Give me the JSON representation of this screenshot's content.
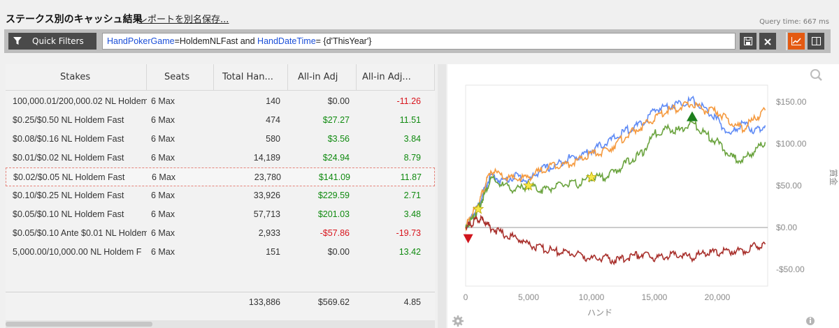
{
  "header": {
    "title": "ステークス別のキャッシュ結果",
    "save_link": "レポートを別名保存...",
    "query_time": "Query time: 667 ms"
  },
  "filters": {
    "button_label": "Quick Filters",
    "query_parts": [
      {
        "text": "HandPokerGame",
        "kind": "key"
      },
      {
        "text": "=HoldemNLFast and ",
        "kind": "plain"
      },
      {
        "text": "HandDateTime",
        "kind": "key"
      },
      {
        "text": "= {d'ThisYear'}",
        "kind": "plain"
      }
    ]
  },
  "toolbar": {
    "icons": [
      "save-icon",
      "close-icon",
      "line-chart-icon",
      "panel-icon"
    ]
  },
  "table": {
    "columns": [
      "Stakes",
      "Seats",
      "Total Han...",
      "All-in Adj",
      "All-in Adj..."
    ],
    "rows": [
      {
        "stakes": "100,000.01/200,000.02 NL Holdem",
        "seats": "6 Max",
        "hands": "140",
        "adj": "$0.00",
        "adj2": "-11.26",
        "adj_color": "neutral",
        "adj2_color": "neg"
      },
      {
        "stakes": "$0.25/$0.50 NL Holdem Fast",
        "seats": "6 Max",
        "hands": "474",
        "adj": "$27.27",
        "adj2": "11.51",
        "adj_color": "pos",
        "adj2_color": "pos"
      },
      {
        "stakes": "$0.08/$0.16 NL Holdem Fast",
        "seats": "6 Max",
        "hands": "580",
        "adj": "$3.56",
        "adj2": "3.84",
        "adj_color": "pos",
        "adj2_color": "pos"
      },
      {
        "stakes": "$0.01/$0.02 NL Holdem Fast",
        "seats": "6 Max",
        "hands": "14,189",
        "adj": "$24.94",
        "adj2": "8.79",
        "adj_color": "pos",
        "adj2_color": "pos"
      },
      {
        "stakes": "$0.02/$0.05 NL Holdem Fast",
        "seats": "6 Max",
        "hands": "23,780",
        "adj": "$141.09",
        "adj2": "11.87",
        "adj_color": "pos",
        "adj2_color": "pos",
        "selected": true
      },
      {
        "stakes": "$0.10/$0.25 NL Holdem Fast",
        "seats": "6 Max",
        "hands": "33,926",
        "adj": "$229.59",
        "adj2": "2.71",
        "adj_color": "pos",
        "adj2_color": "pos"
      },
      {
        "stakes": "$0.05/$0.10 NL Holdem Fast",
        "seats": "6 Max",
        "hands": "57,713",
        "adj": "$201.03",
        "adj2": "3.48",
        "adj_color": "pos",
        "adj2_color": "pos"
      },
      {
        "stakes": "$0.05/$0.10 Ante $0.01 NL Holdem",
        "seats": "6 Max",
        "hands": "2,933",
        "adj": "-$57.86",
        "adj2": "-19.73",
        "adj_color": "neg",
        "adj2_color": "neg"
      },
      {
        "stakes": "5,000.00/10,000.00 NL Holdem F",
        "seats": "6 Max",
        "hands": "151",
        "adj": "$0.00",
        "adj2": "13.42",
        "adj_color": "neutral",
        "adj2_color": "pos"
      }
    ],
    "totals": {
      "hands": "133,886",
      "adj": "$569.62",
      "adj2": "4.85"
    }
  },
  "chart_data": {
    "type": "line",
    "xlabel": "ハンド",
    "ylabel": "賞金",
    "xlim": [
      0,
      24000
    ],
    "ylim": [
      -70,
      170
    ],
    "x_ticks": [
      0,
      5000,
      10000,
      15000,
      20000
    ],
    "x_tick_labels": [
      "0",
      "5,000",
      "10,000",
      "15,000",
      "20,000"
    ],
    "y_ticks": [
      150,
      100,
      50,
      0,
      -50
    ],
    "y_tick_labels": [
      "$150.00",
      "$100.00",
      "$50.00",
      "$0.00",
      "-$50.00"
    ],
    "series": [
      {
        "color": "#5f8bf5",
        "x": [
          0,
          500,
          1000,
          1500,
          2000,
          3000,
          4000,
          5000,
          6000,
          7000,
          8000,
          9000,
          10000,
          11000,
          12000,
          13000,
          14000,
          15000,
          16000,
          17000,
          18000,
          19000,
          20000,
          21000,
          22000,
          23000,
          23800
        ],
        "values": [
          0,
          12,
          25,
          45,
          62,
          55,
          62,
          55,
          70,
          72,
          82,
          85,
          92,
          100,
          108,
          118,
          123,
          140,
          145,
          148,
          152,
          142,
          128,
          110,
          125,
          115,
          122
        ]
      },
      {
        "color": "#f59a3f",
        "x": [
          0,
          500,
          1000,
          1500,
          2000,
          3000,
          4000,
          5000,
          6000,
          7000,
          8000,
          9000,
          10000,
          11000,
          12000,
          13000,
          14000,
          15000,
          16000,
          17000,
          18000,
          19000,
          20000,
          21000,
          22000,
          23000,
          23800
        ],
        "values": [
          0,
          15,
          28,
          48,
          68,
          60,
          58,
          60,
          68,
          75,
          75,
          80,
          88,
          90,
          100,
          112,
          120,
          130,
          140,
          143,
          148,
          140,
          138,
          126,
          118,
          130,
          140
        ]
      },
      {
        "color": "#6aa33e",
        "x": [
          0,
          500,
          1000,
          1500,
          2000,
          3000,
          4000,
          5000,
          6000,
          7000,
          8000,
          9000,
          10000,
          11000,
          12000,
          13000,
          14000,
          15000,
          16000,
          17000,
          18000,
          19000,
          20000,
          21000,
          22000,
          23000,
          23800
        ],
        "values": [
          0,
          10,
          22,
          40,
          58,
          50,
          45,
          50,
          45,
          48,
          52,
          52,
          60,
          60,
          68,
          80,
          88,
          112,
          118,
          116,
          125,
          112,
          102,
          85,
          80,
          92,
          102
        ]
      },
      {
        "color": "#a8302c",
        "x": [
          0,
          500,
          1000,
          1500,
          2000,
          3000,
          4000,
          5000,
          6000,
          7000,
          8000,
          9000,
          10000,
          11000,
          12000,
          13000,
          14000,
          15000,
          16000,
          17000,
          18000,
          19000,
          20000,
          21000,
          22000,
          23000,
          23800
        ],
        "values": [
          0,
          5,
          10,
          8,
          0,
          -8,
          -12,
          -20,
          -25,
          -28,
          -30,
          -32,
          -38,
          -36,
          -40,
          -35,
          -32,
          -36,
          -34,
          -32,
          -36,
          -30,
          -30,
          -28,
          -28,
          -22,
          -20
        ]
      }
    ],
    "markers": [
      {
        "kind": "star",
        "x": 1000,
        "y": 22
      },
      {
        "kind": "star",
        "x": 5000,
        "y": 50
      },
      {
        "kind": "star",
        "x": 10000,
        "y": 60
      },
      {
        "kind": "triangle-up",
        "x": 18000,
        "y": 132
      },
      {
        "kind": "triangle-down",
        "x": 200,
        "y": -13
      }
    ],
    "zero_line": true
  }
}
